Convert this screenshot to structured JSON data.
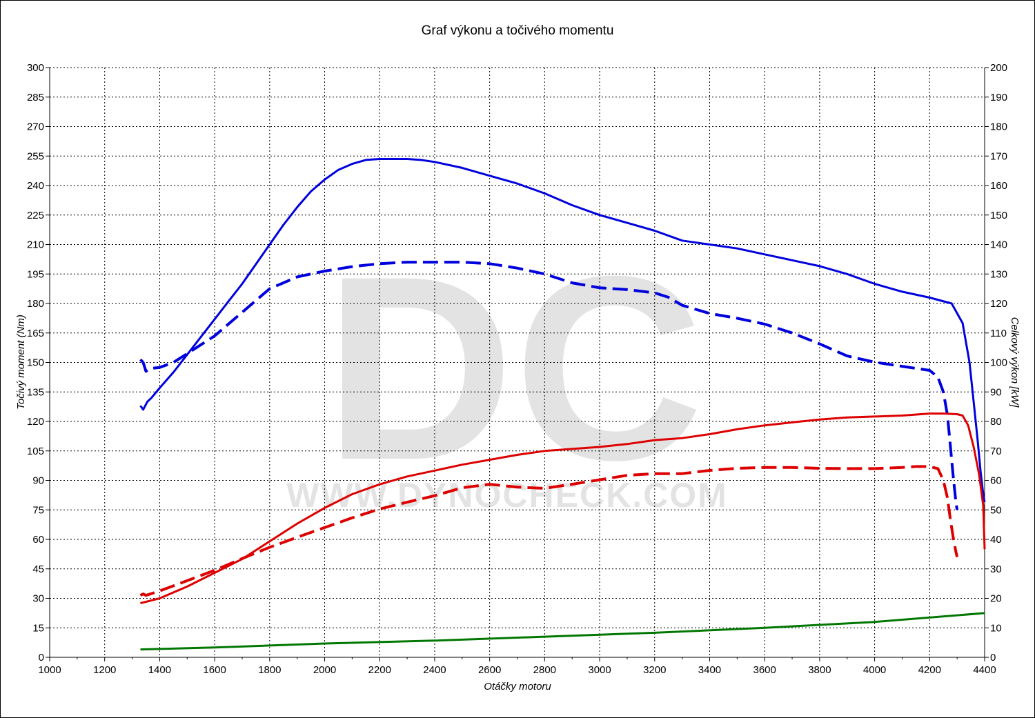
{
  "chart_data": {
    "type": "line",
    "title": "Graf výkonu a točivého momentu",
    "xlabel": "Otáčky motoru",
    "ylabel_left": "Točivý moment (Nm)",
    "ylabel_right": "Celkový výkon [kW]",
    "xlim": [
      1000,
      4400
    ],
    "ylim_left": [
      0,
      300
    ],
    "ylim_right": [
      0,
      200
    ],
    "x_ticks": [
      "1000",
      "1200",
      "1400",
      "1600",
      "1800",
      "2000",
      "2200",
      "2400",
      "2600",
      "2800",
      "3000",
      "3200",
      "3400",
      "3600",
      "3800",
      "4000",
      "4200",
      "4400"
    ],
    "y_ticks_left": [
      "0",
      "15",
      "30",
      "45",
      "60",
      "75",
      "90",
      "105",
      "120",
      "135",
      "150",
      "165",
      "180",
      "195",
      "210",
      "225",
      "240",
      "255",
      "270",
      "285",
      "300"
    ],
    "y_ticks_right": [
      "0",
      "10",
      "20",
      "30",
      "40",
      "50",
      "60",
      "70",
      "80",
      "90",
      "100",
      "110",
      "120",
      "130",
      "140",
      "150",
      "160",
      "170",
      "180",
      "190",
      "200"
    ],
    "grid": true,
    "watermark": {
      "logo": "DC",
      "url": "WWW.DYNOCHECK.COM"
    },
    "series": [
      {
        "color": "#0000dd",
        "style": "solid",
        "axis": "left",
        "x": [
          1330,
          1340,
          1355,
          1370,
          1400,
          1450,
          1500,
          1550,
          1600,
          1650,
          1700,
          1750,
          1800,
          1850,
          1900,
          1950,
          2000,
          2050,
          2100,
          2150,
          2200,
          2250,
          2300,
          2350,
          2400,
          2500,
          2600,
          2700,
          2800,
          2900,
          3000,
          3100,
          3200,
          3300,
          3400,
          3500,
          3600,
          3700,
          3800,
          3900,
          4000,
          4100,
          4200,
          4280,
          4320,
          4345,
          4360,
          4375,
          4385,
          4395,
          4400
        ],
        "y": [
          128,
          126,
          130,
          132,
          137,
          145,
          154,
          163,
          172,
          181,
          190,
          200,
          210,
          220,
          229,
          237,
          243,
          248,
          251,
          253,
          253.5,
          253.5,
          253.5,
          253,
          252,
          249,
          245,
          241,
          236,
          230,
          225,
          221,
          217,
          212,
          210,
          208,
          205,
          202,
          199,
          195,
          190,
          186,
          183,
          180,
          170,
          150,
          130,
          110,
          95,
          83,
          79
        ]
      },
      {
        "color": "#0000dd",
        "style": "dashed",
        "axis": "right",
        "x": [
          1330,
          1340,
          1350,
          1370,
          1400,
          1450,
          1500,
          1550,
          1600,
          1650,
          1700,
          1750,
          1800,
          1900,
          2000,
          2100,
          2200,
          2300,
          2400,
          2500,
          2600,
          2700,
          2800,
          2900,
          3000,
          3100,
          3200,
          3250,
          3300,
          3400,
          3500,
          3600,
          3700,
          3800,
          3900,
          4000,
          4100,
          4200,
          4230,
          4250,
          4265,
          4275,
          4285,
          4295,
          4300
        ],
        "y": [
          101,
          100,
          97,
          98,
          98.3,
          100,
          103,
          106,
          109,
          113,
          117,
          121,
          125,
          129,
          131,
          132.5,
          133.5,
          134,
          134,
          134,
          133.5,
          132,
          130,
          127,
          125.3,
          124.7,
          123.6,
          122.1,
          119.4,
          116.6,
          115,
          113,
          110,
          106.3,
          102.2,
          100.1,
          98.7,
          97.3,
          95,
          90,
          82,
          72,
          62,
          53,
          50
        ]
      },
      {
        "color": "#dd0000",
        "style": "solid",
        "axis": "left",
        "x": [
          1330,
          1400,
          1500,
          1600,
          1700,
          1800,
          1900,
          2000,
          2100,
          2200,
          2300,
          2400,
          2500,
          2600,
          2700,
          2800,
          2900,
          3000,
          3100,
          3200,
          3300,
          3400,
          3500,
          3600,
          3700,
          3800,
          3900,
          4000,
          4100,
          4200,
          4250,
          4300,
          4320,
          4340,
          4360,
          4380,
          4395,
          4400
        ],
        "y": [
          27.5,
          30,
          36,
          43,
          50,
          59,
          68,
          76,
          83,
          88,
          92,
          95,
          98,
          100.5,
          103,
          105,
          106,
          107,
          108.5,
          110.5,
          111.5,
          113.5,
          116,
          118,
          119.5,
          121,
          122,
          122.5,
          123,
          124,
          124,
          123.7,
          123,
          118,
          107,
          93,
          77,
          55
        ]
      },
      {
        "color": "#dd0000",
        "style": "dashed",
        "axis": "right",
        "x": [
          1330,
          1340,
          1350,
          1400,
          1500,
          1600,
          1700,
          1800,
          1900,
          2000,
          2100,
          2200,
          2300,
          2400,
          2500,
          2600,
          2700,
          2800,
          2900,
          3000,
          3100,
          3200,
          3300,
          3400,
          3500,
          3600,
          3700,
          3800,
          3900,
          4000,
          4100,
          4150,
          4200,
          4230,
          4250,
          4265,
          4275,
          4285,
          4295,
          4300
        ],
        "y": [
          21,
          21.5,
          21,
          22.5,
          26,
          29.5,
          33.5,
          37.3,
          40.7,
          44,
          47.3,
          50.3,
          52.6,
          54.8,
          57.5,
          58.7,
          57.7,
          57.3,
          58.7,
          60.2,
          61.7,
          62.3,
          62.3,
          63.4,
          64.1,
          64.4,
          64.4,
          64.1,
          64.0,
          64.0,
          64.4,
          64.7,
          64.7,
          64,
          60,
          54,
          47,
          41,
          36,
          34
        ]
      },
      {
        "color": "#007700",
        "style": "solid",
        "axis": "left",
        "x": [
          1330,
          1600,
          2000,
          2400,
          2800,
          3200,
          3600,
          4000,
          4400
        ],
        "y": [
          4,
          5,
          7,
          8.5,
          10.5,
          12.5,
          15,
          18,
          22.5
        ]
      }
    ]
  }
}
